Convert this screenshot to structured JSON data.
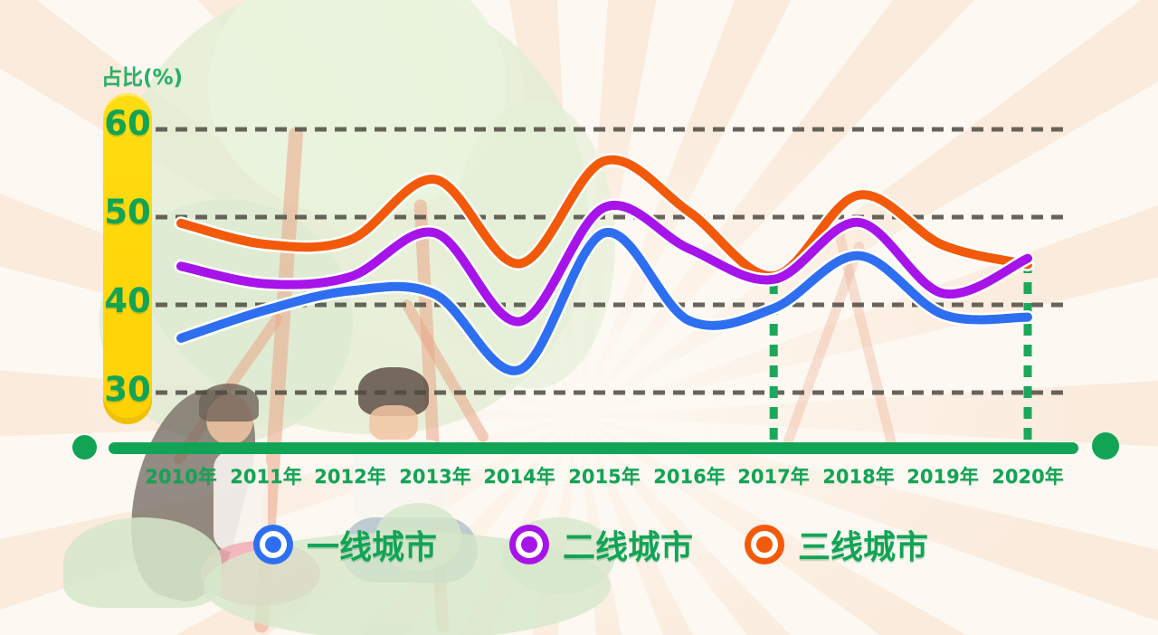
{
  "axis": {
    "y_label": "占比(%)",
    "y_ticks": [
      "60",
      "50",
      "40",
      "30"
    ],
    "x_tick_suffix": "年"
  },
  "legend": [
    {
      "label": "一线城市",
      "color": "#2e6ff2"
    },
    {
      "label": "二线城市",
      "color": "#a714ea"
    },
    {
      "label": "三线城市",
      "color": "#f25a0a"
    }
  ],
  "colors": {
    "axis_green": "#12a455",
    "ybar_yellow": "#ffd80a",
    "gridline": "#4d4a42",
    "guide_green": "#1ca75c",
    "line_blue": "#2e6ff2",
    "line_purple": "#a714ea",
    "line_orange": "#f25a0a"
  },
  "chart_data": {
    "type": "line",
    "x": [
      2010,
      2011,
      2012,
      2013,
      2014,
      2015,
      2016,
      2017,
      2018,
      2019,
      2020
    ],
    "categories": [
      "2010年",
      "2011年",
      "2012年",
      "2013年",
      "2014年",
      "2015年",
      "2016年",
      "2017年",
      "2018年",
      "2019年",
      "2020年"
    ],
    "series": [
      {
        "name": "一线城市",
        "color": "#2e6ff2",
        "values": [
          36.2,
          39.4,
          41.6,
          41.2,
          32.6,
          48.2,
          38.2,
          39.6,
          45.6,
          38.9,
          38.6
        ]
      },
      {
        "name": "二线城市",
        "color": "#a714ea",
        "values": [
          44.4,
          42.4,
          43.2,
          48.2,
          38.1,
          51.1,
          46.4,
          42.9,
          49.4,
          41.3,
          45.3
        ]
      },
      {
        "name": "三线城市",
        "color": "#f25a0a",
        "values": [
          49.3,
          46.9,
          47.4,
          54.3,
          44.7,
          56.4,
          50.6,
          43.3,
          52.5,
          46.8,
          44.6
        ]
      }
    ],
    "ylabel": "占比(%)",
    "yticks": [
      30,
      40,
      50,
      60
    ],
    "ylim": [
      28,
      62
    ],
    "grid": "horizontal-dashed",
    "legend_position": "bottom",
    "guides": [
      2017,
      2020
    ]
  }
}
